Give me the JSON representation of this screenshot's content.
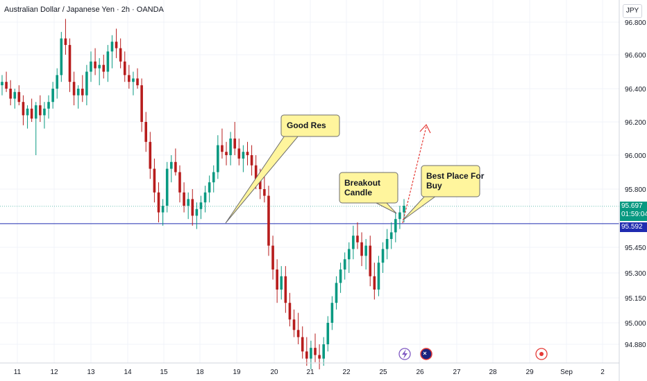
{
  "chart_title": "Australian Dollar / Japanese Yen · 2h · OANDA",
  "currency": "JPY",
  "price_tags": {
    "current_price": "95.697",
    "countdown": "01:59:04",
    "line_price": "95.592"
  },
  "colors": {
    "up": "#089981",
    "down": "#b71c1c",
    "horizontal_line": "#1f2bb0",
    "callout_fill": "#fff59d",
    "arrow": "#e53935"
  },
  "chart_data": {
    "type": "candlestick",
    "title": "Australian Dollar / Japanese Yen · 2h · OANDA",
    "y_ticks": [
      "96.800",
      "96.600",
      "96.400",
      "96.200",
      "96.000",
      "95.800",
      "95.450",
      "95.300",
      "95.150",
      "95.000",
      "94.880"
    ],
    "x_ticks": [
      "11",
      "12",
      "13",
      "14",
      "15",
      "18",
      "19",
      "20",
      "21",
      "22",
      "25",
      "26",
      "27",
      "28",
      "29",
      "Sep",
      "2"
    ],
    "horizontal_line_price": 95.592,
    "current_price": 95.697,
    "annotations": [
      {
        "text": [
          "Good Res"
        ]
      },
      {
        "text": [
          "Breakout",
          "Candle"
        ]
      },
      {
        "text": [
          "Best Place For",
          "Buy"
        ]
      }
    ],
    "candles": [
      [
        96.42,
        96.48,
        96.36,
        96.44
      ],
      [
        96.44,
        96.5,
        96.38,
        96.4
      ],
      [
        96.4,
        96.45,
        96.3,
        96.34
      ],
      [
        96.34,
        96.4,
        96.28,
        96.38
      ],
      [
        96.38,
        96.42,
        96.3,
        96.32
      ],
      [
        96.32,
        96.36,
        96.18,
        96.24
      ],
      [
        96.24,
        96.3,
        96.16,
        96.28
      ],
      [
        96.28,
        96.34,
        96.2,
        96.22
      ],
      [
        96.22,
        96.32,
        96.0,
        96.3
      ],
      [
        96.3,
        96.36,
        96.2,
        96.24
      ],
      [
        96.24,
        96.32,
        96.16,
        96.28
      ],
      [
        96.28,
        96.36,
        96.22,
        96.32
      ],
      [
        96.32,
        96.44,
        96.28,
        96.4
      ],
      [
        96.4,
        96.52,
        96.34,
        96.48
      ],
      [
        96.48,
        96.74,
        96.44,
        96.7
      ],
      [
        96.7,
        96.82,
        96.6,
        96.66
      ],
      [
        96.66,
        96.7,
        96.38,
        96.44
      ],
      [
        96.44,
        96.5,
        96.3,
        96.36
      ],
      [
        96.36,
        96.42,
        96.28,
        96.4
      ],
      [
        96.4,
        96.48,
        96.32,
        96.36
      ],
      [
        96.36,
        96.54,
        96.3,
        96.5
      ],
      [
        96.5,
        96.62,
        96.44,
        96.56
      ],
      [
        96.56,
        96.64,
        96.48,
        96.52
      ],
      [
        96.52,
        96.58,
        96.42,
        96.54
      ],
      [
        96.54,
        96.6,
        96.46,
        96.5
      ],
      [
        96.5,
        96.66,
        96.44,
        96.62
      ],
      [
        96.62,
        96.72,
        96.52,
        96.68
      ],
      [
        96.68,
        96.76,
        96.58,
        96.64
      ],
      [
        96.64,
        96.7,
        96.52,
        96.56
      ],
      [
        96.56,
        96.62,
        96.44,
        96.48
      ],
      [
        96.48,
        96.54,
        96.4,
        96.44
      ],
      [
        96.44,
        96.5,
        96.36,
        96.46
      ],
      [
        96.46,
        96.52,
        96.4,
        96.42
      ],
      [
        96.42,
        96.46,
        96.14,
        96.2
      ],
      [
        96.2,
        96.26,
        96.02,
        96.08
      ],
      [
        96.08,
        96.14,
        95.86,
        95.92
      ],
      [
        95.92,
        95.98,
        95.72,
        95.78
      ],
      [
        95.78,
        95.84,
        95.6,
        95.66
      ],
      [
        95.66,
        95.74,
        95.58,
        95.7
      ],
      [
        95.7,
        95.96,
        95.66,
        95.92
      ],
      [
        95.92,
        96.0,
        95.84,
        95.96
      ],
      [
        95.96,
        96.04,
        95.88,
        95.9
      ],
      [
        95.9,
        95.94,
        95.72,
        95.78
      ],
      [
        95.78,
        95.84,
        95.66,
        95.7
      ],
      [
        95.7,
        95.78,
        95.62,
        95.74
      ],
      [
        95.74,
        95.8,
        95.58,
        95.64
      ],
      [
        95.64,
        95.72,
        95.56,
        95.68
      ],
      [
        95.68,
        95.76,
        95.62,
        95.72
      ],
      [
        95.72,
        95.82,
        95.66,
        95.78
      ],
      [
        95.78,
        95.88,
        95.72,
        95.84
      ],
      [
        95.84,
        95.94,
        95.78,
        95.9
      ],
      [
        95.9,
        96.12,
        95.86,
        96.06
      ],
      [
        96.06,
        96.16,
        95.98,
        96.02
      ],
      [
        96.02,
        96.08,
        95.94,
        96.0
      ],
      [
        96.0,
        96.14,
        95.94,
        96.1
      ],
      [
        96.1,
        96.2,
        96.0,
        96.04
      ],
      [
        96.04,
        96.1,
        95.94,
        95.98
      ],
      [
        95.98,
        96.06,
        95.9,
        96.02
      ],
      [
        96.02,
        96.08,
        95.94,
        96.0
      ],
      [
        96.0,
        96.06,
        95.88,
        95.94
      ],
      [
        95.94,
        96.0,
        95.8,
        95.86
      ],
      [
        95.86,
        95.92,
        95.74,
        95.8
      ],
      [
        95.8,
        95.88,
        95.72,
        95.76
      ],
      [
        95.76,
        95.82,
        95.4,
        95.46
      ],
      [
        95.46,
        95.52,
        95.26,
        95.32
      ],
      [
        95.32,
        95.38,
        95.12,
        95.2
      ],
      [
        95.2,
        95.34,
        95.14,
        95.28
      ],
      [
        95.28,
        95.34,
        95.06,
        95.12
      ],
      [
        95.12,
        95.18,
        94.98,
        95.02
      ],
      [
        95.02,
        95.08,
        94.92,
        94.96
      ],
      [
        94.96,
        95.06,
        94.88,
        94.92
      ],
      [
        94.92,
        94.98,
        94.8,
        94.84
      ],
      [
        94.84,
        94.92,
        94.76,
        94.8
      ],
      [
        94.8,
        94.9,
        94.74,
        94.86
      ],
      [
        94.86,
        94.94,
        94.78,
        94.82
      ],
      [
        94.82,
        94.88,
        94.74,
        94.8
      ],
      [
        94.8,
        94.92,
        94.76,
        94.88
      ],
      [
        94.88,
        95.04,
        94.84,
        95.0
      ],
      [
        95.0,
        95.16,
        94.96,
        95.12
      ],
      [
        95.12,
        95.28,
        95.08,
        95.24
      ],
      [
        95.24,
        95.36,
        95.18,
        95.32
      ],
      [
        95.32,
        95.42,
        95.26,
        95.38
      ],
      [
        95.38,
        95.48,
        95.3,
        95.44
      ],
      [
        95.44,
        95.58,
        95.38,
        95.52
      ],
      [
        95.52,
        95.6,
        95.44,
        95.48
      ],
      [
        95.48,
        95.54,
        95.34,
        95.4
      ],
      [
        95.4,
        95.5,
        95.32,
        95.46
      ],
      [
        95.46,
        95.52,
        95.22,
        95.28
      ],
      [
        95.28,
        95.36,
        95.14,
        95.2
      ],
      [
        95.2,
        95.4,
        95.16,
        95.36
      ],
      [
        95.36,
        95.48,
        95.3,
        95.44
      ],
      [
        95.44,
        95.56,
        95.38,
        95.5
      ],
      [
        95.5,
        95.6,
        95.44,
        95.54
      ],
      [
        95.54,
        95.66,
        95.48,
        95.62
      ],
      [
        95.62,
        95.7,
        95.56,
        95.66
      ],
      [
        95.66,
        95.74,
        95.6,
        95.7
      ]
    ]
  }
}
